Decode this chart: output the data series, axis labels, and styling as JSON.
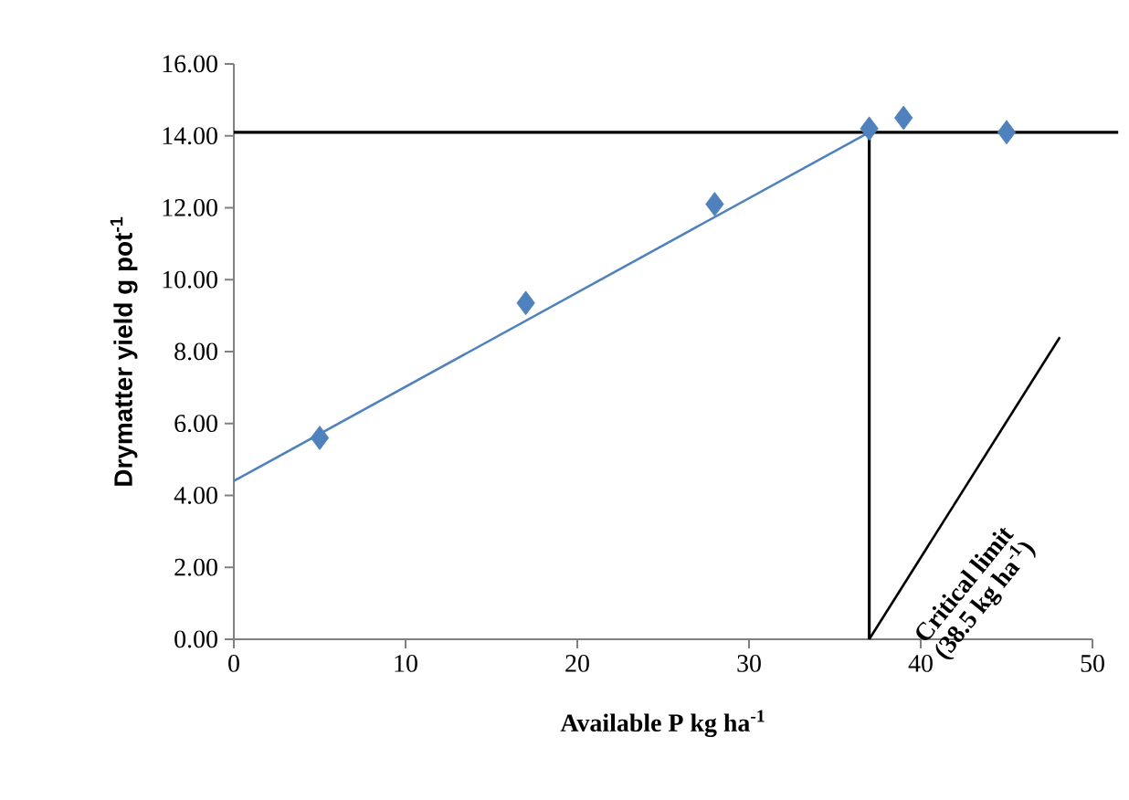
{
  "chart_data": {
    "type": "scatter",
    "xlabel": "Available P kg ha$^{-1}$",
    "ylabel": "Drymatter yield g pot$^{-1}$",
    "xlim": [
      0,
      50
    ],
    "xticks": [
      0,
      10,
      20,
      30,
      40,
      50
    ],
    "ylim": [
      0,
      16
    ],
    "yticks": [
      {
        "value": 0,
        "label": "0.00"
      },
      {
        "value": 2,
        "label": "2.00"
      },
      {
        "value": 4,
        "label": "4.00"
      },
      {
        "value": 6,
        "label": "6.00"
      },
      {
        "value": 8,
        "label": "8.00"
      },
      {
        "value": 10,
        "label": "10.00"
      },
      {
        "value": 12,
        "label": "12.00"
      },
      {
        "value": 14,
        "label": "14.00"
      },
      {
        "value": 16,
        "label": "16.00"
      }
    ],
    "series": [
      {
        "color": "#4f81bd",
        "marker": "diamond",
        "x": [
          5,
          17,
          28,
          37,
          39,
          45
        ],
        "values": [
          5.6,
          9.35,
          12.1,
          14.2,
          14.5,
          14.1
        ]
      },
      {
        "type": "line",
        "color": "#4f81bd",
        "x": [
          0,
          37
        ],
        "values": [
          4.4,
          14.1
        ]
      },
      {
        "type": "line",
        "color": "#000000",
        "x": [
          37,
          48.1
        ],
        "values": [
          0,
          8.4
        ]
      }
    ],
    "ref_lines": [
      {
        "axis": "y",
        "value": 14.1,
        "color": "#000000"
      },
      {
        "axis": "x",
        "value": 37,
        "color": "#000000"
      }
    ],
    "annotations": [
      {
        "text": "Critical limit",
        "x": 37,
        "y": 0
      },
      "(38.5 kg ha$^{-1}$)"
    ]
  }
}
